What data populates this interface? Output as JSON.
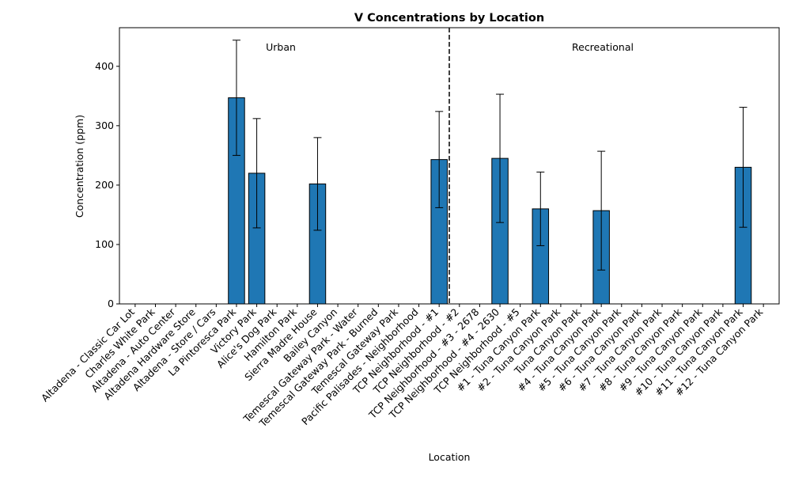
{
  "chart_data": {
    "type": "bar",
    "title": "V Concentrations by Location",
    "xlabel": "Location",
    "ylabel": "Concentration (ppm)",
    "ylim": [
      0,
      465
    ],
    "yticks": [
      0,
      100,
      200,
      300,
      400
    ],
    "bar_color": "#1f77b4",
    "edge_color": "#000000",
    "categories": [
      "Altadena - Classic Car Lot",
      "Charles White Park",
      "Altadena - Auto Center",
      "Altadena Hardware Store",
      "Altadena - Store / Cars",
      "La Pintoresca Park",
      "Victory Park",
      "Alice's Dog Park",
      "Hamilton Park",
      "Sierra Madre House",
      "Bailey Canyon",
      "Temescal Gateway Park - Water",
      "Temescal Gateway Park - Burned",
      "Temescal Gateway Park",
      "Pacific Palisades - Neighborhood",
      "TCP Neighborhood - #1",
      "TCP Neighborhood - #2",
      "TCP Neighborhood - #3 - 2678",
      "TCP Neighborhood - #4 - 2630",
      "TCP Neighborhood - #5",
      "#1 - Tuna Canyon Park",
      "#2 - Tuna Canyon Park",
      "Tuna Canyon Park",
      "#4 - Tuna Canyon Park",
      "#5 - Tuna Canyon Park",
      "#6 - Tuna Canyon Park",
      "#7 - Tuna Canyon Park",
      "#8 - Tuna Canyon Park",
      "#9 - Tuna Canyon Park",
      "#10 - Tuna Canyon Park",
      "#11 - Tuna Canyon Park",
      "#12 - Tuna Canyon Park"
    ],
    "values": [
      null,
      null,
      null,
      null,
      null,
      347,
      220,
      null,
      null,
      202,
      null,
      null,
      null,
      null,
      null,
      243,
      null,
      null,
      245,
      null,
      160,
      null,
      null,
      157,
      null,
      null,
      null,
      null,
      null,
      null,
      230,
      null
    ],
    "error": [
      null,
      null,
      null,
      null,
      null,
      97,
      92,
      null,
      null,
      78,
      null,
      null,
      null,
      null,
      null,
      81,
      null,
      null,
      108,
      null,
      62,
      null,
      null,
      100,
      null,
      null,
      null,
      null,
      null,
      null,
      101,
      null
    ],
    "divider_after_index": 15,
    "group_labels": [
      "Urban",
      "Recreational"
    ]
  }
}
